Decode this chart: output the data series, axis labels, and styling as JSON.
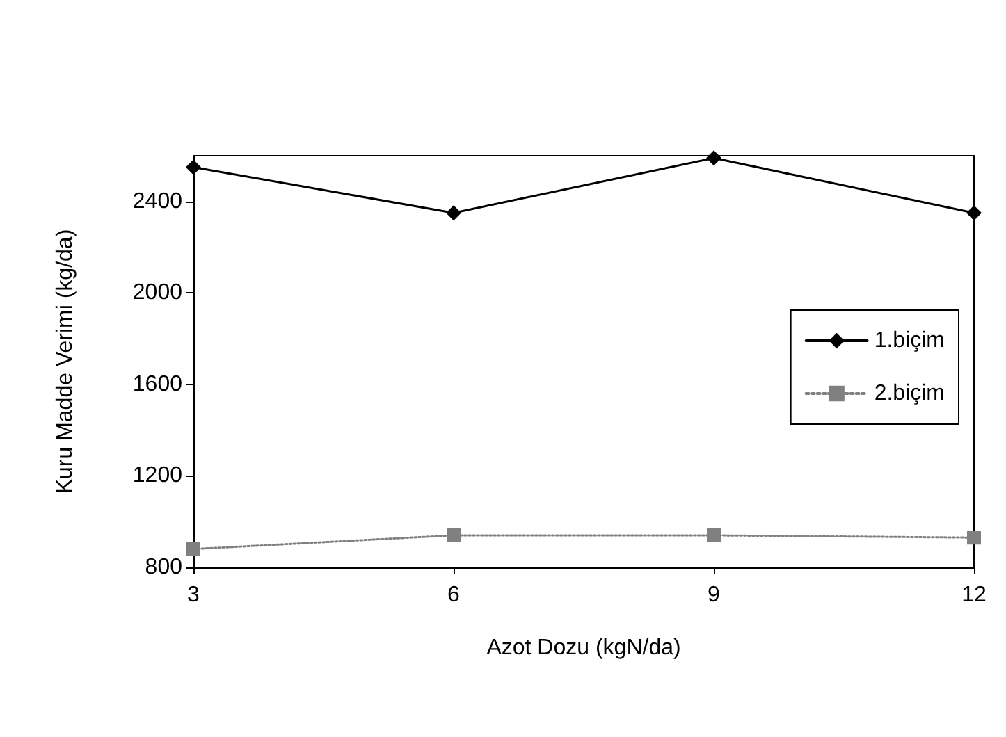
{
  "chart_data": {
    "type": "line",
    "xlabel": "Azot Dozu (kgN/da)",
    "ylabel": "Kuru Madde Verimi (kg/da)",
    "x": [
      3,
      6,
      9,
      12
    ],
    "series": [
      {
        "name": "1.biçim",
        "color": "#000000",
        "values": [
          2550,
          2350,
          2590,
          2350
        ],
        "marker": "diamond",
        "line_style": "solid"
      },
      {
        "name": "2.biçim",
        "color": "#808080",
        "values": [
          880,
          940,
          940,
          930
        ],
        "marker": "square",
        "line_style": "dotted"
      }
    ],
    "xlim": [
      3,
      12
    ],
    "xticks": [
      3,
      6,
      9,
      12
    ],
    "ylim": [
      800,
      2600
    ],
    "yticks": [
      800,
      1200,
      1600,
      2000,
      2400
    ],
    "grid": false,
    "legend": "right"
  }
}
